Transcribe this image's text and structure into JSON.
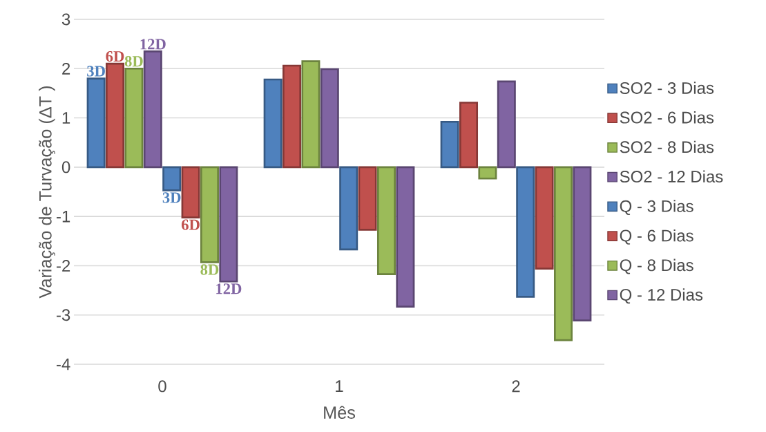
{
  "chart_data": {
    "type": "bar",
    "xlabel": "Mês",
    "ylabel": "Variação de Turvação (ΔT )",
    "categories": [
      "0",
      "1",
      "2"
    ],
    "series": [
      {
        "name": "SO2 - 3 Dias",
        "color": "#4f81bd",
        "values": [
          1.8,
          1.78,
          0.92
        ]
      },
      {
        "name": "SO2 - 6 Dias",
        "color": "#c0504d",
        "values": [
          2.1,
          2.06,
          1.31
        ]
      },
      {
        "name": "SO2 - 8 Dias",
        "color": "#9bbb59",
        "values": [
          2.0,
          2.15,
          -0.23
        ]
      },
      {
        "name": "SO2 - 12 Dias",
        "color": "#8064a2",
        "values": [
          2.35,
          1.99,
          1.74
        ]
      },
      {
        "name": "Q - 3 Dias",
        "color": "#4f81bd",
        "values": [
          -0.47,
          -1.67,
          -2.63
        ]
      },
      {
        "name": "Q - 6 Dias",
        "color": "#c0504d",
        "values": [
          -1.02,
          -1.27,
          -2.06
        ]
      },
      {
        "name": "Q - 8 Dias",
        "color": "#9bbb59",
        "values": [
          -1.93,
          -2.17,
          -3.51
        ]
      },
      {
        "name": "Q - 12  Dias",
        "color": "#8064a2",
        "values": [
          -2.32,
          -2.83,
          -3.11
        ]
      }
    ],
    "annotations": [
      "3D",
      "6D",
      "8D",
      "12D",
      "3D",
      "6D",
      "8D",
      "12D"
    ],
    "ylim": [
      -4,
      3
    ],
    "yticks": [
      -4,
      -3,
      -2,
      -1,
      0,
      1,
      2,
      3
    ],
    "grid": "y",
    "legend": "right"
  }
}
